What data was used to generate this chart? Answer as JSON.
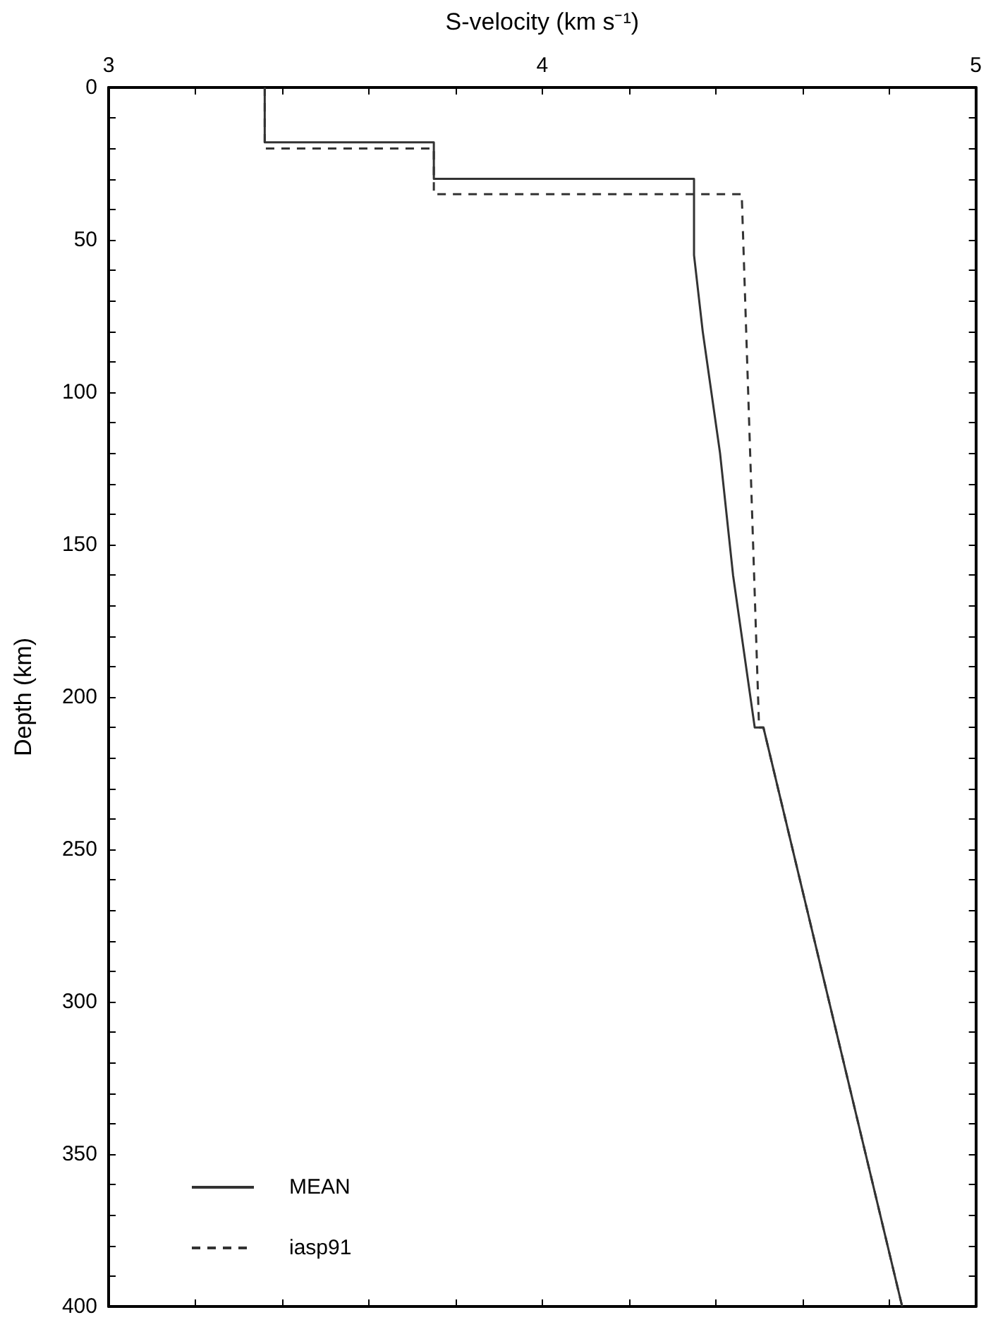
{
  "chart_data": {
    "type": "line",
    "xlabel": "S-velocity (km s⁻¹)",
    "ylabel": "Depth (km)",
    "xlim": [
      3,
      5
    ],
    "ylim": [
      400,
      0
    ],
    "xticks": [
      3,
      {
        "value": 3.2,
        "label": null
      },
      {
        "value": 3.4,
        "label": null
      },
      {
        "value": 3.6,
        "label": null
      },
      {
        "value": 3.8,
        "label": null
      },
      4,
      {
        "value": 4.2,
        "label": null
      },
      {
        "value": 4.4,
        "label": null
      },
      {
        "value": 4.6,
        "label": null
      },
      {
        "value": 4.8,
        "label": null
      },
      5
    ],
    "yticks": [
      0,
      {
        "value": 10,
        "label": null
      },
      {
        "value": 20,
        "label": null
      },
      {
        "value": 30,
        "label": null
      },
      {
        "value": 40,
        "label": null
      },
      50,
      {
        "value": 60,
        "label": null
      },
      {
        "value": 70,
        "label": null
      },
      {
        "value": 80,
        "label": null
      },
      {
        "value": 90,
        "label": null
      },
      100,
      {
        "value": 110,
        "label": null
      },
      {
        "value": 120,
        "label": null
      },
      {
        "value": 130,
        "label": null
      },
      {
        "value": 140,
        "label": null
      },
      150,
      {
        "value": 160,
        "label": null
      },
      {
        "value": 170,
        "label": null
      },
      {
        "value": 180,
        "label": null
      },
      {
        "value": 190,
        "label": null
      },
      200,
      {
        "value": 210,
        "label": null
      },
      {
        "value": 220,
        "label": null
      },
      {
        "value": 230,
        "label": null
      },
      {
        "value": 240,
        "label": null
      },
      250,
      {
        "value": 260,
        "label": null
      },
      {
        "value": 270,
        "label": null
      },
      {
        "value": 280,
        "label": null
      },
      {
        "value": 290,
        "label": null
      },
      300,
      {
        "value": 310,
        "label": null
      },
      {
        "value": 320,
        "label": null
      },
      {
        "value": 330,
        "label": null
      },
      {
        "value": 340,
        "label": null
      },
      350,
      {
        "value": 360,
        "label": null
      },
      {
        "value": 370,
        "label": null
      },
      {
        "value": 380,
        "label": null
      },
      {
        "value": 390,
        "label": null
      },
      400
    ],
    "grid": false,
    "legend": "bottom left",
    "marker": "none",
    "series": [
      {
        "name": "MEAN",
        "color": "#333333",
        "line_style": "solid",
        "x": [
          3.36,
          3.36,
          3.75,
          3.75,
          4.35,
          4.35,
          4.37,
          4.41,
          4.44,
          4.49,
          4.51,
          4.83
        ],
        "values": [
          0,
          18,
          18,
          30,
          30,
          55,
          80,
          120,
          160,
          210,
          210,
          400
        ]
      },
      {
        "name": "iasp91",
        "color": "#333333",
        "line_style": "dashed",
        "x": [
          3.36,
          3.36,
          3.75,
          3.75,
          4.46,
          4.5,
          4.51,
          4.83
        ],
        "values": [
          0,
          20,
          20,
          35,
          35,
          210,
          210,
          400
        ]
      }
    ]
  }
}
